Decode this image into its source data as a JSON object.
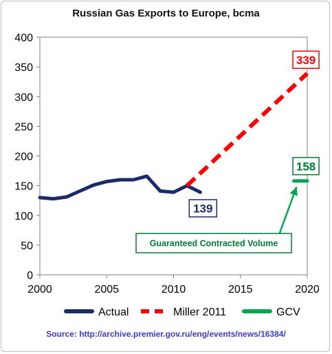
{
  "chart_data": {
    "type": "line",
    "title": "Russian Gas Exports to Europe, bcma",
    "xlim": [
      2000,
      2020
    ],
    "ylim": [
      0,
      400
    ],
    "x_ticks": [
      "2000",
      "2005",
      "2010",
      "2015",
      "2020"
    ],
    "y_ticks": [
      "0",
      "50",
      "100",
      "150",
      "200",
      "250",
      "300",
      "350",
      "400"
    ],
    "grid": false,
    "series": [
      {
        "name": "Actual",
        "color": "#1b2a6b",
        "style": "solid",
        "x": [
          2000,
          2001,
          2002,
          2003,
          2004,
          2005,
          2006,
          2007,
          2008,
          2009,
          2010,
          2011,
          2012
        ],
        "y": [
          130,
          128,
          131,
          141,
          151,
          157,
          160,
          160,
          166,
          141,
          139,
          150,
          139
        ]
      },
      {
        "name": "Miller 2011",
        "color": "#ff0000",
        "style": "dashed",
        "x": [
          2011,
          2020
        ],
        "y": [
          150,
          339
        ]
      },
      {
        "name": "GCV",
        "color": "#00a850",
        "style": "solid",
        "x": [
          2019,
          2020
        ],
        "y": [
          158,
          158
        ]
      }
    ],
    "annotations": [
      {
        "text": "139",
        "target": "Actual 2012",
        "color": "#1b2a6b"
      },
      {
        "text": "339",
        "target": "Miller 2011 2020",
        "color": "#ff0000"
      },
      {
        "text": "158",
        "target": "GCV",
        "color": "#007a33"
      },
      {
        "text": "Guaranteed Contracted Volume",
        "color": "#007a33"
      }
    ],
    "legend_position": "bottom"
  },
  "source_text": "Source: http://archive.premier.gov.ru/eng/events/news/16384/"
}
